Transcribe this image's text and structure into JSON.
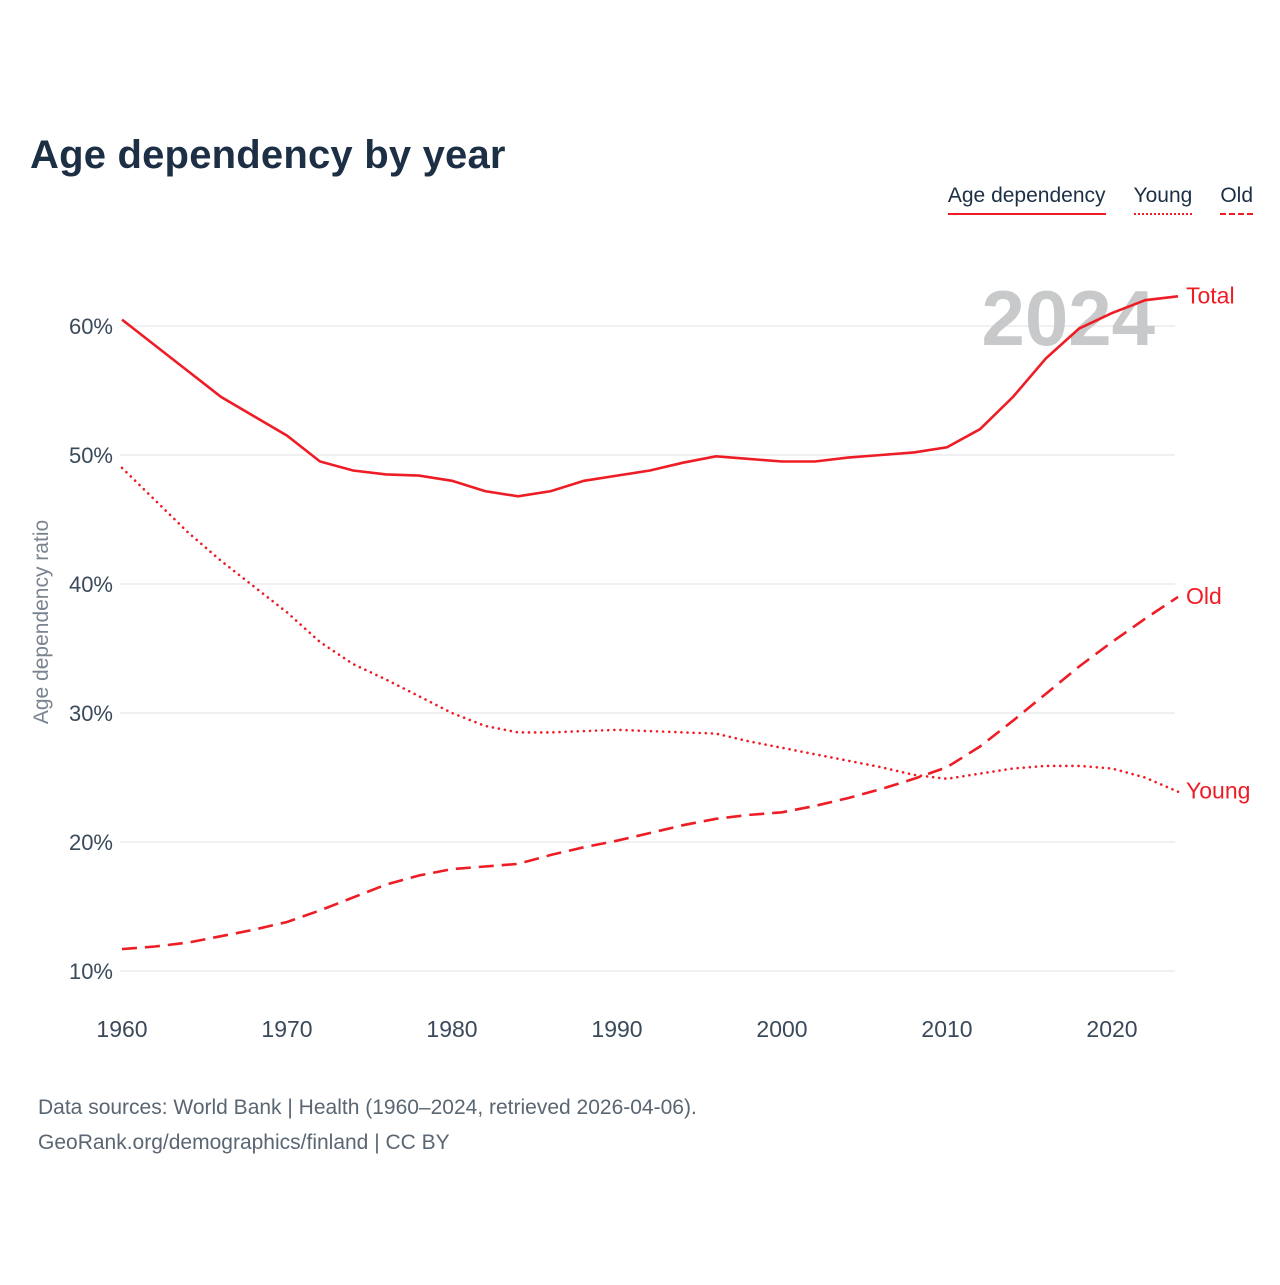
{
  "title": "Age dependency by year",
  "legend": {
    "items": [
      {
        "label": "Age dependency",
        "style": "solid"
      },
      {
        "label": "Young",
        "style": "dotted"
      },
      {
        "label": "Old",
        "style": "dashed"
      }
    ]
  },
  "watermark": "2024",
  "chart_data": {
    "type": "line",
    "title": "Age dependency by year",
    "xlabel": "",
    "ylabel": "Age dependency ratio",
    "xlim": [
      1960,
      2024
    ],
    "ylim": [
      10,
      60
    ],
    "grid": true,
    "legend_position": "top-right",
    "color": "#ee1d25",
    "xticks": [
      1960,
      1970,
      1980,
      1990,
      2000,
      2010,
      2020
    ],
    "yticks": [
      10,
      20,
      30,
      40,
      50,
      60
    ],
    "ytick_labels": [
      "10%",
      "20%",
      "30%",
      "40%",
      "50%",
      "60%"
    ],
    "x": [
      1960,
      1962,
      1964,
      1966,
      1968,
      1970,
      1972,
      1974,
      1976,
      1978,
      1980,
      1982,
      1984,
      1986,
      1988,
      1990,
      1992,
      1994,
      1996,
      1998,
      2000,
      2002,
      2004,
      2006,
      2008,
      2010,
      2012,
      2014,
      2016,
      2018,
      2020,
      2022,
      2024
    ],
    "series": [
      {
        "name": "Total",
        "end_label": "Total",
        "style": "solid",
        "values": [
          60.5,
          58.5,
          56.5,
          54.5,
          53.0,
          51.5,
          49.5,
          48.8,
          48.5,
          48.4,
          48.0,
          47.2,
          46.8,
          47.2,
          48.0,
          48.4,
          48.8,
          49.4,
          49.9,
          49.7,
          49.5,
          49.5,
          49.8,
          50.0,
          50.2,
          50.6,
          52.0,
          54.5,
          57.5,
          59.8,
          61.0,
          62.0,
          62.3
        ]
      },
      {
        "name": "Young",
        "end_label": "Young",
        "style": "dotted",
        "values": [
          49.0,
          46.5,
          44.0,
          41.8,
          39.8,
          37.8,
          35.5,
          33.8,
          32.6,
          31.3,
          30.0,
          29.0,
          28.5,
          28.5,
          28.6,
          28.7,
          28.6,
          28.5,
          28.4,
          27.8,
          27.3,
          26.8,
          26.3,
          25.8,
          25.2,
          24.9,
          25.3,
          25.7,
          25.9,
          25.9,
          25.7,
          25.0,
          23.9
        ]
      },
      {
        "name": "Old",
        "end_label": "Old",
        "style": "dashed",
        "values": [
          11.7,
          11.9,
          12.2,
          12.7,
          13.2,
          13.8,
          14.7,
          15.7,
          16.7,
          17.4,
          17.9,
          18.1,
          18.3,
          19.0,
          19.6,
          20.1,
          20.7,
          21.3,
          21.8,
          22.1,
          22.3,
          22.8,
          23.4,
          24.1,
          24.9,
          25.8,
          27.4,
          29.4,
          31.5,
          33.6,
          35.5,
          37.3,
          39.0
        ]
      }
    ]
  },
  "footer": {
    "line1": "Data sources: World Bank | Health (1960–2024, retrieved 2026-04-06).",
    "line2": "GeoRank.org/demographics/finland | CC BY"
  }
}
